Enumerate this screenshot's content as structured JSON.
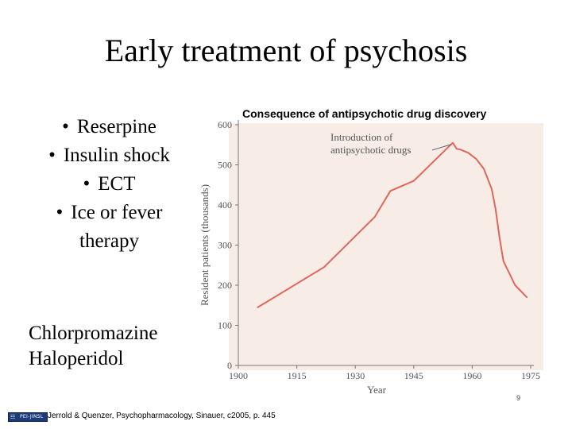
{
  "slide": {
    "title": "Early treatment of psychosis",
    "bullets": [
      "Reserpine",
      "Insulin shock",
      "ECT",
      "Ice or fever therapy"
    ],
    "drugs": [
      "Chlorpromazine",
      "Haloperidol"
    ],
    "slide_number": "9"
  },
  "footer": {
    "logo_mark": "☷",
    "logo_text": "PEI-JINSL",
    "citation": "Jerrold & Quenzer, Psychopharmacology, Sinauer, c2005, p. 445"
  },
  "colors": {
    "plot_bg": "#f8ede6",
    "line": "#e0655a",
    "axis": "#777777"
  },
  "chart_data": {
    "type": "line",
    "title": "Consequence of antipsychotic drug discovery",
    "xlabel": "Year",
    "ylabel": "Resident patients (thousands)",
    "xlim": [
      1900,
      1975
    ],
    "ylim": [
      0,
      600
    ],
    "xticks": [
      1900,
      1915,
      1930,
      1945,
      1960,
      1975
    ],
    "yticks": [
      0,
      100,
      200,
      300,
      400,
      500,
      600
    ],
    "series": [
      {
        "name": "Resident patients",
        "x": [
          1905,
          1922,
          1935,
          1939,
          1945,
          1955,
          1956,
          1957,
          1959,
          1961,
          1963,
          1965,
          1966,
          1967,
          1968,
          1971,
          1974
        ],
        "y": [
          145,
          245,
          370,
          435,
          460,
          555,
          540,
          538,
          530,
          515,
          490,
          440,
          390,
          320,
          260,
          200,
          170
        ]
      }
    ],
    "annotations": [
      {
        "text": "Introduction of antipsychotic drugs",
        "lines": [
          "Introduction of",
          "antipsychotic drugs"
        ],
        "x": 1955,
        "y": 555
      }
    ],
    "grid": false
  }
}
